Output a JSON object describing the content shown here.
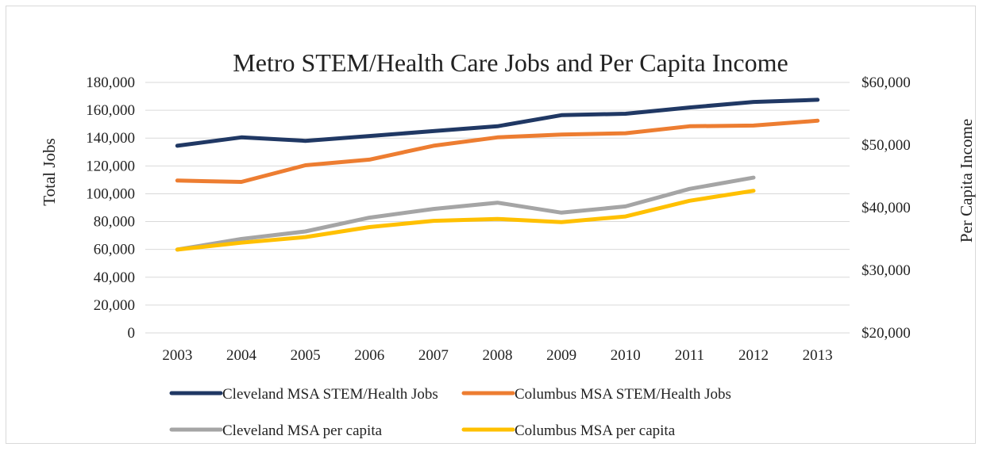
{
  "chart_data": {
    "type": "line",
    "title": "Metro STEM/Health Care Jobs and Per Capita Income",
    "x": [
      "2003",
      "2004",
      "2005",
      "2006",
      "2007",
      "2008",
      "2009",
      "2010",
      "2011",
      "2012",
      "2013"
    ],
    "ylabel": "Total Jobs",
    "y2label": "Per Capita Income",
    "ylim": [
      0,
      180000
    ],
    "y2lim": [
      20000,
      60000
    ],
    "yticks": [
      "0",
      "20,000",
      "40,000",
      "60,000",
      "80,000",
      "100,000",
      "120,000",
      "140,000",
      "160,000",
      "180,000"
    ],
    "y2ticks": [
      "$20,000",
      "$30,000",
      "$40,000",
      "$50,000",
      "$60,000"
    ],
    "grid": true,
    "legend_position": "bottom",
    "series": [
      {
        "name": "Cleveland MSA STEM/Health Jobs",
        "axis": "left",
        "color": "#203864",
        "values": [
          134500,
          140500,
          138000,
          141500,
          145000,
          148500,
          156500,
          157500,
          162000,
          166000,
          167500
        ]
      },
      {
        "name": "Columbus MSA STEM/Health Jobs",
        "axis": "left",
        "color": "#ED7D31",
        "values": [
          109500,
          108500,
          120500,
          124500,
          134500,
          140500,
          142500,
          143500,
          148500,
          149000,
          152500
        ]
      },
      {
        "name": "Cleveland MSA per capita",
        "axis": "right",
        "color": "#A5A5A5",
        "values": [
          33300,
          35000,
          36200,
          38400,
          39800,
          40800,
          39200,
          40200,
          43000,
          44800,
          null
        ]
      },
      {
        "name": "Columbus MSA per capita",
        "axis": "right",
        "color": "#FFC000",
        "values": [
          33300,
          34400,
          35300,
          36900,
          37900,
          38200,
          37700,
          38600,
          41100,
          42700,
          null
        ]
      }
    ]
  }
}
